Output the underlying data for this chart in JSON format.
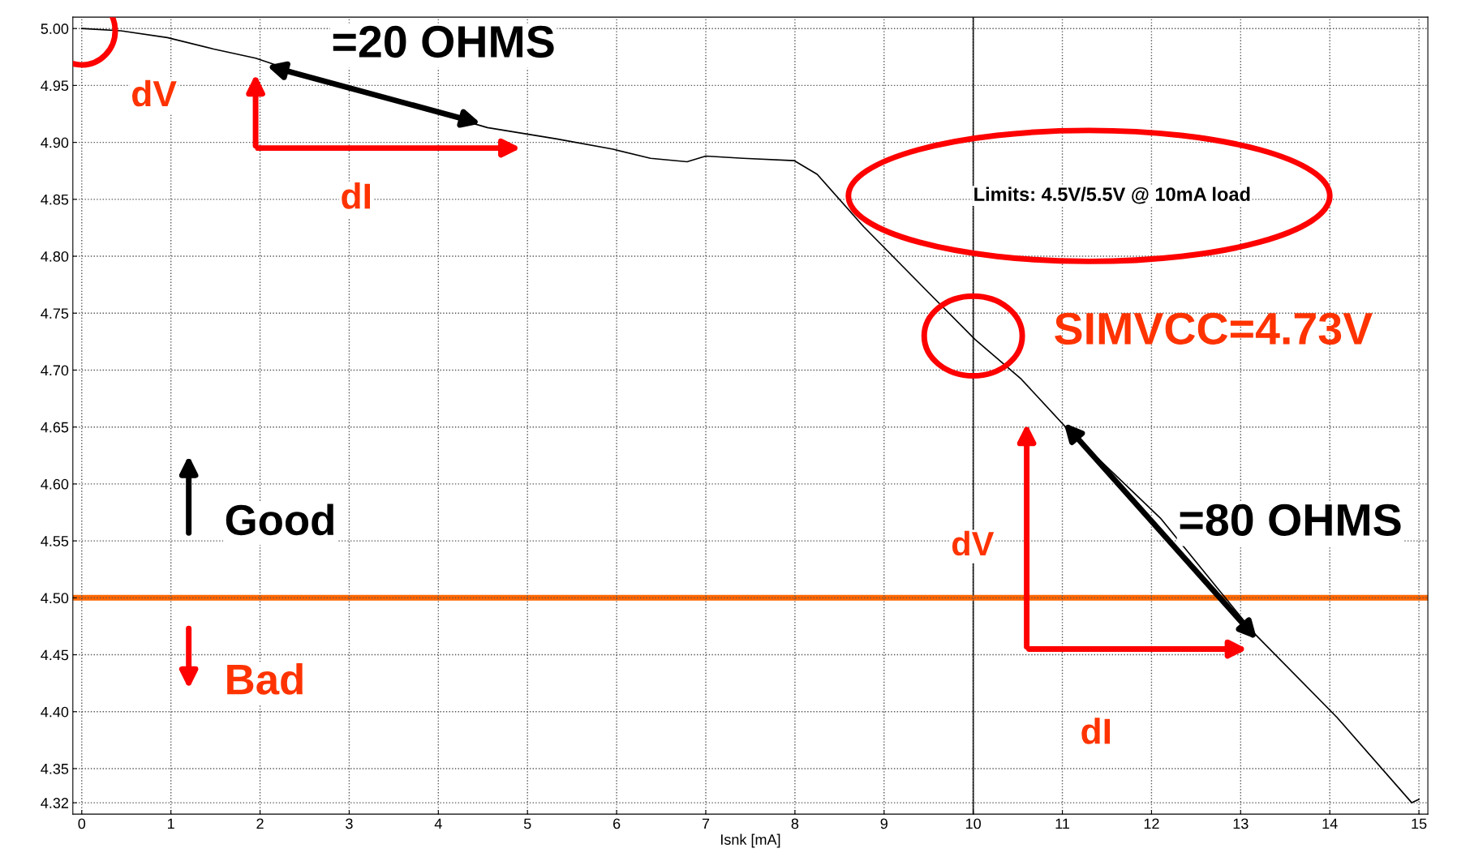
{
  "chart_data": {
    "type": "line",
    "xlabel": "Isnk [mA]",
    "x": [
      0,
      0.44,
      0.96,
      1.48,
      1.95,
      2.52,
      3.25,
      3.98,
      4.55,
      5.33,
      5.96,
      6.38,
      6.79,
      7.0,
      7.42,
      7.99,
      8.25,
      8.77,
      9.5,
      10.02,
      10.54,
      11.06,
      12.1,
      13.15,
      14.08,
      14.92,
      15.0
    ],
    "series": [
      {
        "color": "#000000",
        "values": [
          5.0,
          4.998,
          4.992,
          4.982,
          4.974,
          4.959,
          4.942,
          4.926,
          4.913,
          4.903,
          4.894,
          4.886,
          4.883,
          4.888,
          4.886,
          4.884,
          4.872,
          4.826,
          4.768,
          4.727,
          4.692,
          4.648,
          4.57,
          4.469,
          4.395,
          4.32,
          4.323
        ]
      }
    ],
    "xlim": [
      -0.1,
      15.1
    ],
    "ylim": [
      4.31,
      5.01
    ],
    "xticks": [
      0,
      1,
      2,
      3,
      4,
      5,
      6,
      7,
      8,
      9,
      10,
      11,
      12,
      13,
      14,
      15
    ],
    "yticks": [
      {
        "value": 5.0,
        "label": "5.00"
      },
      4.95,
      {
        "value": 4.9,
        "label": "4.90"
      },
      4.85,
      {
        "value": 4.8,
        "label": "4.80"
      },
      4.75,
      {
        "value": 4.7,
        "label": "4.70"
      },
      4.65,
      {
        "value": 4.6,
        "label": "4.60"
      },
      4.55,
      {
        "value": 4.5,
        "label": "4.50"
      },
      4.45,
      {
        "value": 4.4,
        "label": "4.40"
      },
      4.35,
      4.32
    ],
    "grid": true,
    "marker": "none",
    "line_style": "solid",
    "legend": false,
    "ref_lines": [
      {
        "axis": "y",
        "value": 4.5,
        "color": "#ff6600"
      },
      {
        "axis": "x",
        "value": 10,
        "color": "#000000"
      }
    ],
    "annotations": [
      "=20 OHMS",
      "dV",
      "dI",
      "Limits: 4.5V/5.5V @ 10mA load",
      {
        "text": "SIMVCC=4.73V",
        "x": 10,
        "y": 4.73
      },
      "=80 OHMS",
      "dV",
      "dI",
      "Good",
      "Bad"
    ]
  }
}
